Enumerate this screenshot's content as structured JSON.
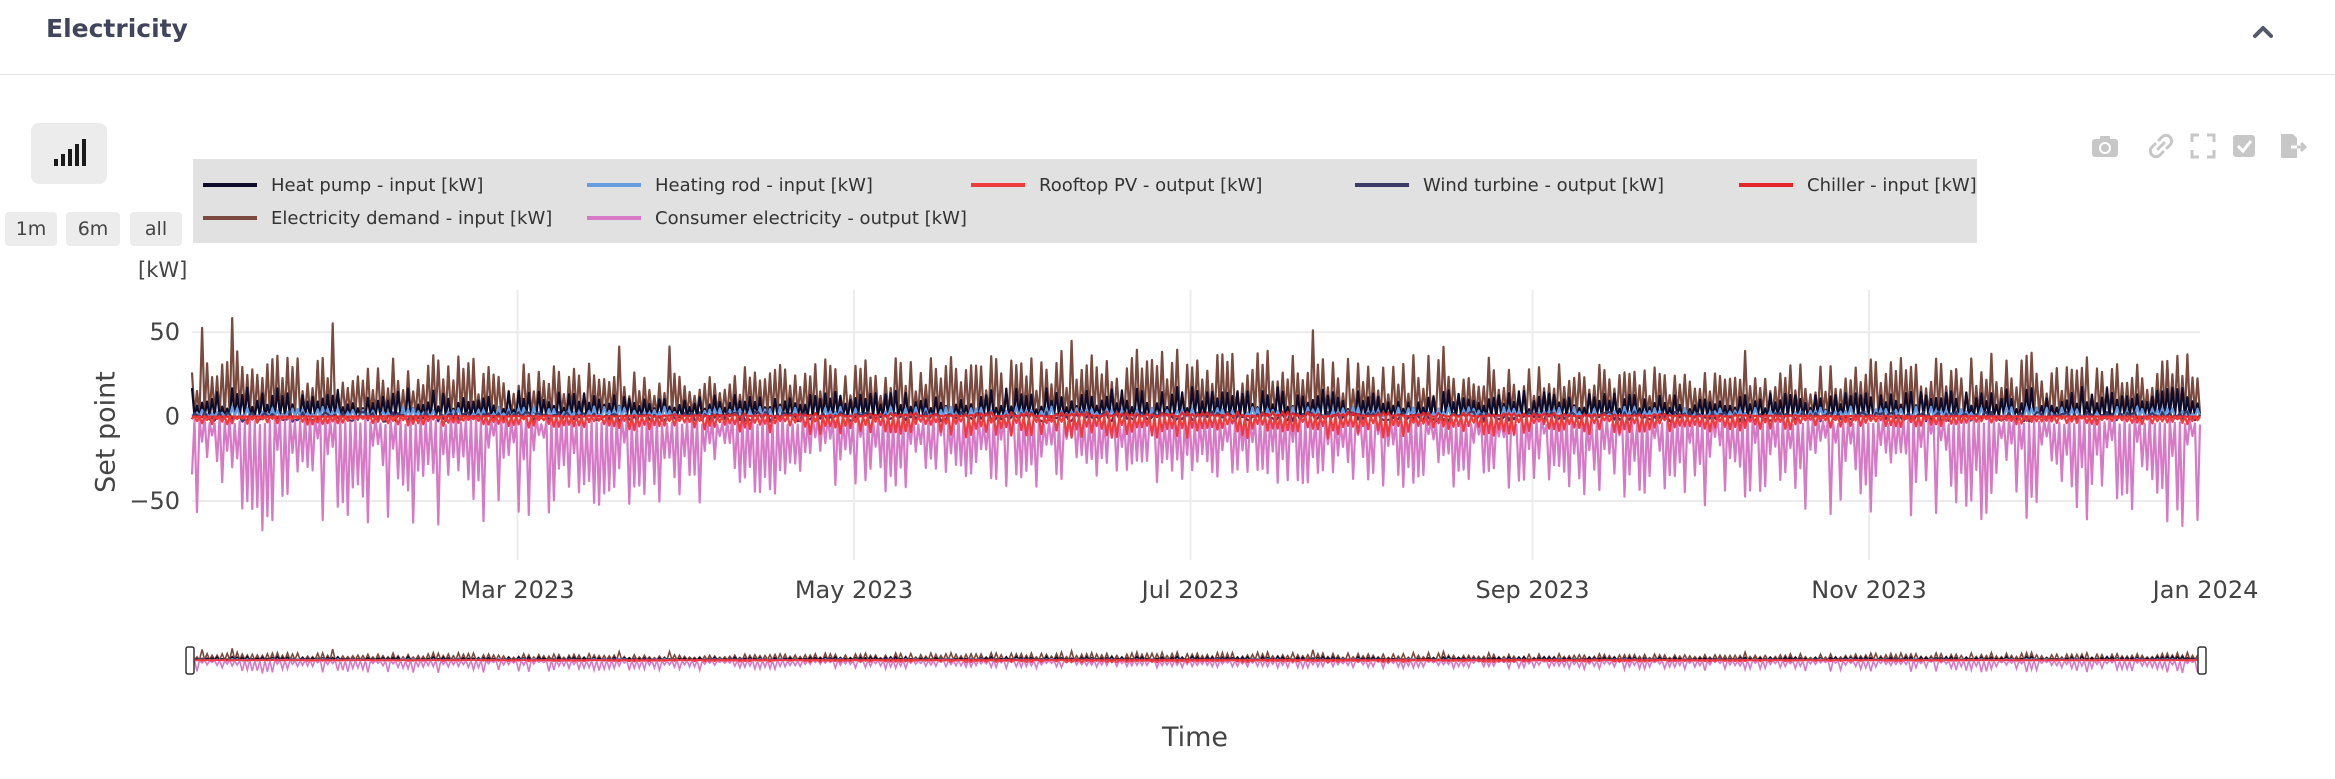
{
  "section": {
    "title": "Electricity"
  },
  "controls": {
    "range_buttons": [
      "1m",
      "6m",
      "all"
    ]
  },
  "legend": [
    {
      "name": "Heat pump - input [kW]",
      "color": "#0d0d2b"
    },
    {
      "name": "Heating rod - input [kW]",
      "color": "#6a9ce0"
    },
    {
      "name": "Rooftop PV - output [kW]",
      "color": "#ee3b3b"
    },
    {
      "name": "Wind turbine - output [kW]",
      "color": "#3b3b66"
    },
    {
      "name": "Chiller - input [kW]",
      "color": "#e3262a"
    },
    {
      "name": "Electricity demand - input [kW]",
      "color": "#7b4a3e"
    },
    {
      "name": "Consumer electricity - output [kW]",
      "color": "#d77ac6"
    }
  ],
  "modebar": [
    "camera-icon",
    "link-icon",
    "fullscreen-icon",
    "checkbox-icon",
    "export-icon"
  ],
  "chart_data": {
    "type": "line",
    "unit_label": "[kW]",
    "ylabel": "Set point",
    "xlabel": "Time",
    "x_range": [
      "2023-01-01",
      "2023-12-31"
    ],
    "ylim": [
      -85,
      75
    ],
    "yticks": [
      50,
      0,
      -50
    ],
    "yticklabels": [
      "50",
      "0",
      "−50"
    ],
    "xticks": [
      "2023-03-01",
      "2023-05-01",
      "2023-07-01",
      "2023-09-01",
      "2023-11-01",
      "2024-01-01"
    ],
    "xticklabels": [
      "Mar 2023",
      "May 2023",
      "Jul 2023",
      "Sep 2023",
      "Nov 2023",
      "Jan 2024"
    ],
    "grid": true,
    "legend_position": "top",
    "rangeslider": true,
    "series": [
      {
        "name": "Heat pump - input [kW]",
        "typical_range": [
          0,
          22
        ]
      },
      {
        "name": "Heating rod - input [kW]",
        "typical_range": [
          0,
          8
        ]
      },
      {
        "name": "Rooftop PV - output [kW]",
        "typical_range": [
          -8,
          0
        ]
      },
      {
        "name": "Wind turbine - output [kW]",
        "typical_range": [
          -3,
          3
        ]
      },
      {
        "name": "Chiller - input [kW]",
        "typical_range": [
          0,
          5
        ]
      },
      {
        "name": "Electricity demand - input [kW]",
        "typical_range": [
          0,
          70
        ]
      },
      {
        "name": "Consumer electricity - output [kW]",
        "typical_range": [
          -80,
          0
        ]
      }
    ]
  }
}
